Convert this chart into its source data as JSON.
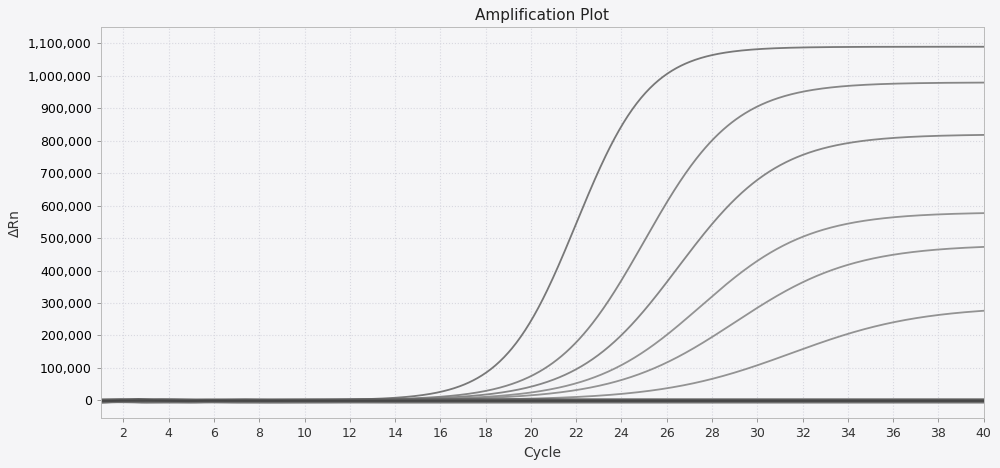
{
  "title": "Amplification Plot",
  "xlabel": "Cycle",
  "ylabel": "ΔRn",
  "x_min": 1,
  "x_max": 40,
  "y_min": -55000,
  "y_max": 1150000,
  "yticks": [
    0,
    100000,
    200000,
    300000,
    400000,
    500000,
    600000,
    700000,
    800000,
    900000,
    1000000,
    1100000
  ],
  "xticks": [
    2,
    4,
    6,
    8,
    10,
    12,
    14,
    16,
    18,
    20,
    22,
    24,
    26,
    28,
    30,
    32,
    34,
    36,
    38,
    40
  ],
  "background_color": "#f5f5f7",
  "plot_bg_color": "#f5f5f7",
  "grid_color": "#d8d8e0",
  "curves": [
    {
      "plateau": 1090000,
      "midpoint": 22.0,
      "steepness": 0.62,
      "color": "#6a6a6a",
      "lw": 1.3
    },
    {
      "plateau": 980000,
      "midpoint": 25.0,
      "steepness": 0.5,
      "color": "#7a7a7a",
      "lw": 1.3
    },
    {
      "plateau": 820000,
      "midpoint": 26.5,
      "steepness": 0.45,
      "color": "#7a7a7a",
      "lw": 1.3
    },
    {
      "plateau": 580000,
      "midpoint": 27.5,
      "steepness": 0.42,
      "color": "#888888",
      "lw": 1.3
    },
    {
      "plateau": 480000,
      "midpoint": 29.0,
      "steepness": 0.38,
      "color": "#888888",
      "lw": 1.3
    },
    {
      "plateau": 290000,
      "midpoint": 31.5,
      "steepness": 0.35,
      "color": "#888888",
      "lw": 1.3
    },
    {
      "plateau": 5000,
      "midpoint": 99,
      "steepness": 0.4,
      "color": "#444444",
      "lw": 1.5
    },
    {
      "plateau": 4000,
      "midpoint": 99,
      "steepness": 0.4,
      "color": "#444444",
      "lw": 1.5
    },
    {
      "plateau": 3000,
      "midpoint": 99,
      "steepness": 0.4,
      "color": "#555555",
      "lw": 1.2
    },
    {
      "plateau": 2000,
      "midpoint": 99,
      "steepness": 0.4,
      "color": "#555555",
      "lw": 1.2
    },
    {
      "plateau": -5000,
      "midpoint": 99,
      "steepness": 0.4,
      "color": "#444444",
      "lw": 1.5
    },
    {
      "plateau": -8000,
      "midpoint": 99,
      "steepness": 0.4,
      "color": "#555555",
      "lw": 1.2
    },
    {
      "plateau": -10000,
      "midpoint": 99,
      "steepness": 0.4,
      "color": "#666666",
      "lw": 1.0
    }
  ],
  "flat_lines": [
    {
      "value": -2000,
      "color": "#444444",
      "lw": 1.5
    },
    {
      "value": -5000,
      "color": "#555555",
      "lw": 1.2
    },
    {
      "value": -8000,
      "color": "#666666",
      "lw": 1.0
    },
    {
      "value": 1000,
      "color": "#444444",
      "lw": 1.3
    },
    {
      "value": 3000,
      "color": "#555555",
      "lw": 1.2
    },
    {
      "value": 5000,
      "color": "#666666",
      "lw": 1.0
    }
  ],
  "figsize": [
    10.0,
    4.68
  ],
  "dpi": 100
}
